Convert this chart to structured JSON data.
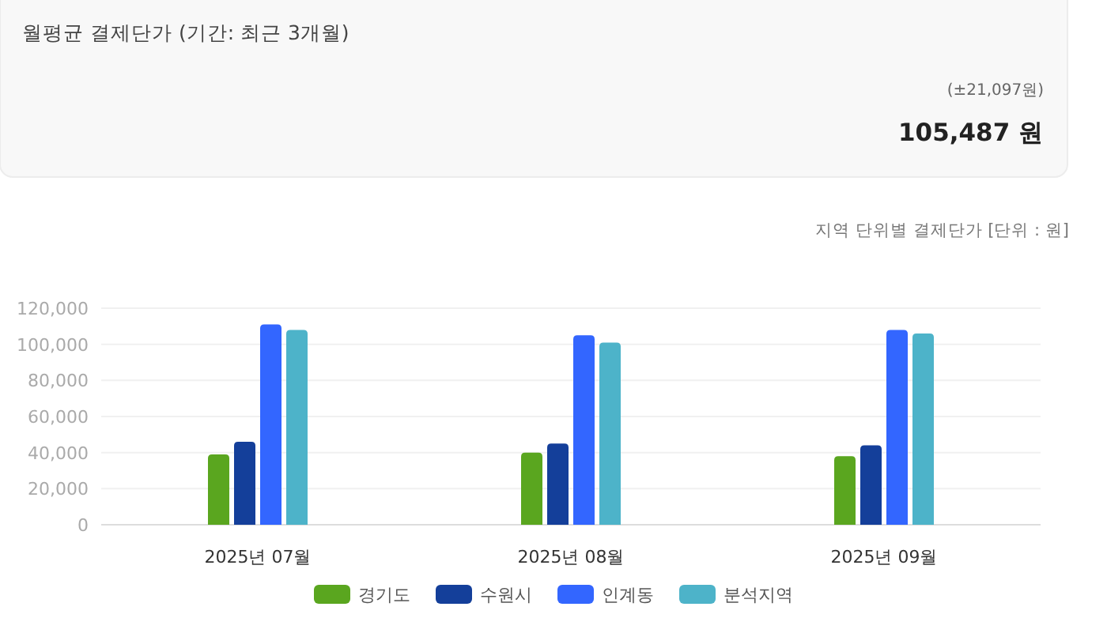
{
  "chart_data": {
    "type": "bar",
    "title": "월평균 결제단가 (기간: 최근 3개월)",
    "subtitle": "지역 단위별 결제단가 [단위 : 원]",
    "annotations": [
      "(±21,097원)",
      "105,487 원"
    ],
    "categories": [
      "2025년 07월",
      "2025년 08월",
      "2025년 09월"
    ],
    "series": [
      {
        "name": "경기도",
        "color": "#5aa61f",
        "values": [
          39000,
          40000,
          38000
        ]
      },
      {
        "name": "수원시",
        "color": "#143f9a",
        "values": [
          46000,
          45000,
          44000
        ]
      },
      {
        "name": "인계동",
        "color": "#3366ff",
        "values": [
          111000,
          105000,
          108000
        ]
      },
      {
        "name": "분석지역",
        "color": "#4db3c9",
        "values": [
          108000,
          101000,
          106000
        ]
      }
    ],
    "ylim": [
      0,
      120000
    ],
    "yticks": [
      {
        "value": 0,
        "label": "0"
      },
      {
        "value": 20000,
        "label": "20,000"
      },
      {
        "value": 40000,
        "label": "40,000"
      },
      {
        "value": 60000,
        "label": "60,000"
      },
      {
        "value": 80000,
        "label": "80,000"
      },
      {
        "value": 100000,
        "label": "100,000"
      },
      {
        "value": 120000,
        "label": "120,000"
      }
    ],
    "grid": "y",
    "legend": "bottom"
  }
}
